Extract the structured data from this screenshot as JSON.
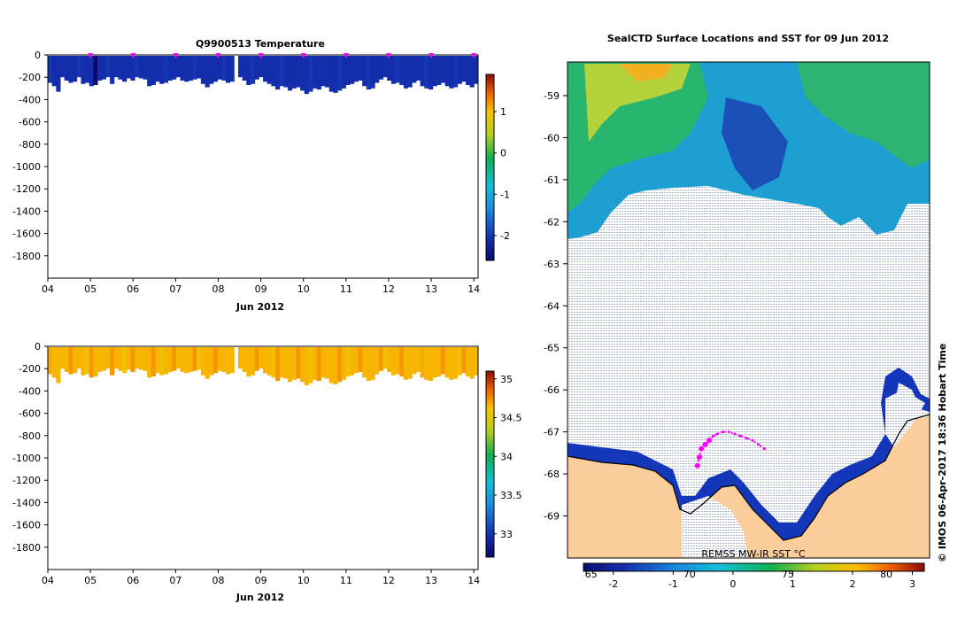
{
  "chart_data": [
    {
      "type": "heatmap",
      "title": "Q9900513  Temperature",
      "xlabel": "Jun 2012",
      "ylabel": "",
      "x_ticks": [
        "04",
        "05",
        "06",
        "07",
        "08",
        "09",
        "10",
        "11",
        "12",
        "13",
        "14"
      ],
      "y_ticks": [
        "0",
        "-200",
        "-400",
        "-600",
        "-800",
        "-1000",
        "-1200",
        "-1400",
        "-1600",
        "-1800"
      ],
      "xlim": [
        4,
        14.1
      ],
      "ylim": [
        -2000,
        0
      ],
      "colorbar": {
        "ticks": [
          "1",
          "0",
          "-1",
          "-2"
        ],
        "range": [
          -2.6,
          1.9
        ]
      },
      "typical_value": -2.1,
      "profile_depths": [
        -250,
        -280,
        -330,
        -200,
        -230,
        -250,
        -240,
        -200,
        -260,
        -250,
        -280,
        -270,
        -230,
        -220,
        -200,
        -260,
        -200,
        -220,
        -240,
        -210,
        -230,
        -200,
        -210,
        -220,
        -280,
        -270,
        -240,
        -260,
        -250,
        -230,
        -220,
        -200,
        -230,
        -240,
        -230,
        -220,
        -210,
        -260,
        -290,
        -260,
        -240,
        -220,
        -230,
        -250,
        -240,
        -210,
        -200,
        -230,
        -270,
        -260,
        -220,
        -200,
        -240,
        -260,
        -280,
        -310,
        -280,
        -290,
        -320,
        -300,
        -290,
        -320,
        -350,
        -330,
        -300,
        -310,
        -280,
        -290,
        -330,
        -340,
        -320,
        -300,
        -270,
        -260,
        -240,
        -230,
        -280,
        -310,
        -300,
        -250,
        -220,
        -200,
        -230,
        -260,
        -250,
        -270,
        -300,
        -290,
        -250,
        -230,
        -280,
        -300,
        -310,
        -280,
        -270,
        -250,
        -280,
        -300,
        -290,
        -260,
        -240,
        -270,
        -290,
        -260
      ],
      "surfacing_markers": [
        5,
        6,
        7,
        8,
        9,
        10,
        11,
        12,
        13,
        14
      ]
    },
    {
      "type": "heatmap",
      "title": "",
      "xlabel": "Jun 2012",
      "ylabel": "",
      "x_ticks": [
        "04",
        "05",
        "06",
        "07",
        "08",
        "09",
        "10",
        "11",
        "12",
        "13",
        "14"
      ],
      "y_ticks": [
        "0",
        "-200",
        "-400",
        "-600",
        "-800",
        "-1000",
        "-1200",
        "-1400",
        "-1600",
        "-1800"
      ],
      "xlim": [
        4,
        14.1
      ],
      "ylim": [
        -2000,
        0
      ],
      "colorbar": {
        "ticks": [
          "35",
          "34.5",
          "34",
          "33.5",
          "33"
        ],
        "range": [
          32.7,
          35.1
        ]
      },
      "typical_value": 34.65
    },
    {
      "type": "heatmap",
      "title": "SealCTD Surface Locations and SST for 09 Jun 2012",
      "xlabel": "",
      "ylabel": "",
      "x_ticks": [
        "65",
        "70",
        "75",
        "80"
      ],
      "y_ticks": [
        "-59",
        "-60",
        "-61",
        "-62",
        "-63",
        "-64",
        "-65",
        "-66",
        "-67",
        "-68",
        "-69"
      ],
      "xlim": [
        63.8,
        82.2
      ],
      "ylim": [
        -70.0,
        -58.2
      ],
      "colorbar": {
        "label": "REMSS MW-IR SST °C",
        "ticks": [
          "-2",
          "-1",
          "0",
          "1",
          "2",
          "3"
        ],
        "range": [
          -2.5,
          3.2
        ]
      },
      "track_lon": [
        73.8,
        73.5,
        73.2,
        72.9,
        72.6,
        72.3,
        72.0,
        71.7,
        71.4,
        71.2,
        71.0,
        70.8,
        70.6,
        70.5,
        70.4
      ],
      "track_lat": [
        -67.4,
        -67.3,
        -67.2,
        -67.15,
        -67.1,
        -67.05,
        -67.0,
        -67.0,
        -67.05,
        -67.1,
        -67.2,
        -67.3,
        -67.4,
        -67.6,
        -67.8
      ]
    }
  ],
  "credit": "© IMOS 06-Apr-2017 18:36 Hobart Time",
  "colors": {
    "land": "#fbcd9b",
    "coast": "#000000",
    "track": "#ff00ff",
    "ice_dots": "#a9b3cf"
  }
}
